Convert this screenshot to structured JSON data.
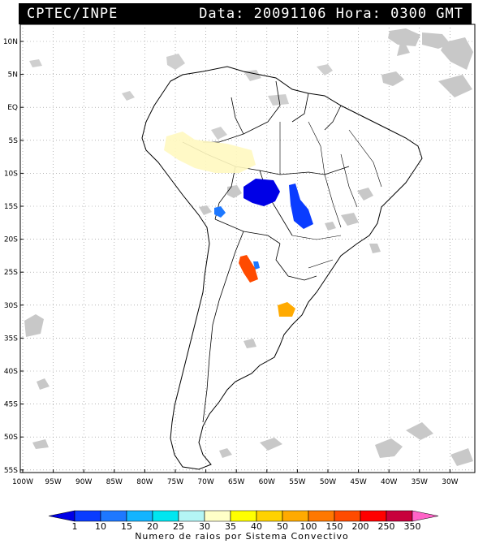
{
  "header": {
    "left": "CPTEC/INPE",
    "right": "Data: 20091106 Hora: 0300 GMT"
  },
  "map": {
    "lat_labels": [
      "10N",
      "5N",
      "EQ",
      "5S",
      "10S",
      "15S",
      "20S",
      "25S",
      "30S",
      "35S",
      "40S",
      "45S",
      "50S",
      "55S"
    ],
    "lon_labels": [
      "100W",
      "95W",
      "90W",
      "85W",
      "80W",
      "75W",
      "70W",
      "65W",
      "60W",
      "55W",
      "50W",
      "45W",
      "40W",
      "35W",
      "30W"
    ],
    "cloud_color": "#c8c8c8"
  },
  "colorbar": {
    "ticks": [
      "1",
      "10",
      "15",
      "20",
      "25",
      "30",
      "35",
      "40",
      "50",
      "100",
      "150",
      "200",
      "250",
      "350"
    ],
    "colors": [
      "#0000e6",
      "#0a3cff",
      "#1e78ff",
      "#14b4ff",
      "#00e6f0",
      "#b4f5f5",
      "#ffffc8",
      "#ffff00",
      "#ffd200",
      "#ffaa00",
      "#ff7800",
      "#ff4b00",
      "#ff0000",
      "#c8003c",
      "#ff64c8"
    ],
    "title": "Numero de raios por Sistema Convectivo"
  }
}
